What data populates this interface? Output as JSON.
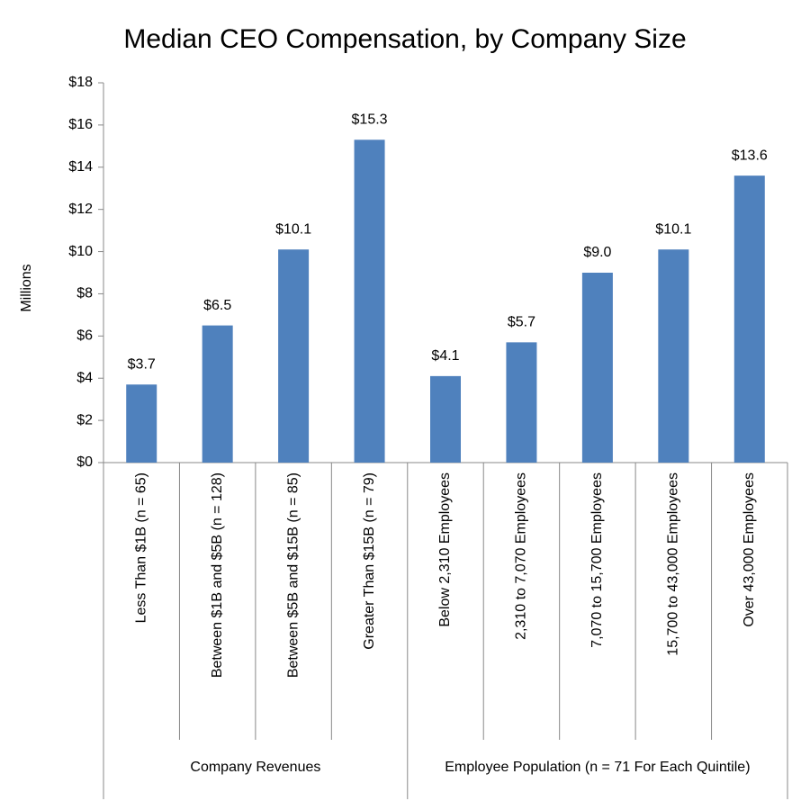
{
  "chart_data": {
    "type": "bar",
    "title": "Median CEO Compensation, by Company Size",
    "y_label": "Millions",
    "color": "#4f81bd",
    "groups": [
      {
        "name": "Company Revenues",
        "categories": [
          "Less Than $1B (n = 65)",
          "Between $1B and $5B (n = 128)",
          "Between $5B and $15B (n = 85)",
          "Greater Than $15B (n = 79)"
        ],
        "values": [
          3.7,
          6.5,
          10.1,
          15.3
        ],
        "value_labels": [
          "$3.7",
          "$6.5",
          "$10.1",
          "$15.3"
        ]
      },
      {
        "name": "Employee Population (n = 71 For Each Quintile)",
        "categories": [
          "Below 2,310 Employees",
          "2,310 to 7,070 Employees",
          "7,070 to 15,700 Employees",
          "15,700 to 43,000 Employees",
          "Over 43,000 Employees"
        ],
        "values": [
          4.1,
          5.7,
          9.0,
          10.1,
          13.6
        ],
        "value_labels": [
          "$4.1",
          "$5.7",
          "$9.0",
          "$10.1",
          "$13.6"
        ]
      }
    ],
    "ylim": [
      0,
      18
    ],
    "yticks": [
      {
        "value": 0,
        "label": "$0"
      },
      {
        "value": 2,
        "label": "$2"
      },
      {
        "value": 4,
        "label": "$4"
      },
      {
        "value": 6,
        "label": "$6"
      },
      {
        "value": 8,
        "label": "$8"
      },
      {
        "value": 10,
        "label": "$10"
      },
      {
        "value": 12,
        "label": "$12"
      },
      {
        "value": 14,
        "label": "$14"
      },
      {
        "value": 16,
        "label": "$16"
      },
      {
        "value": 18,
        "label": "$18"
      }
    ],
    "grid": false
  }
}
